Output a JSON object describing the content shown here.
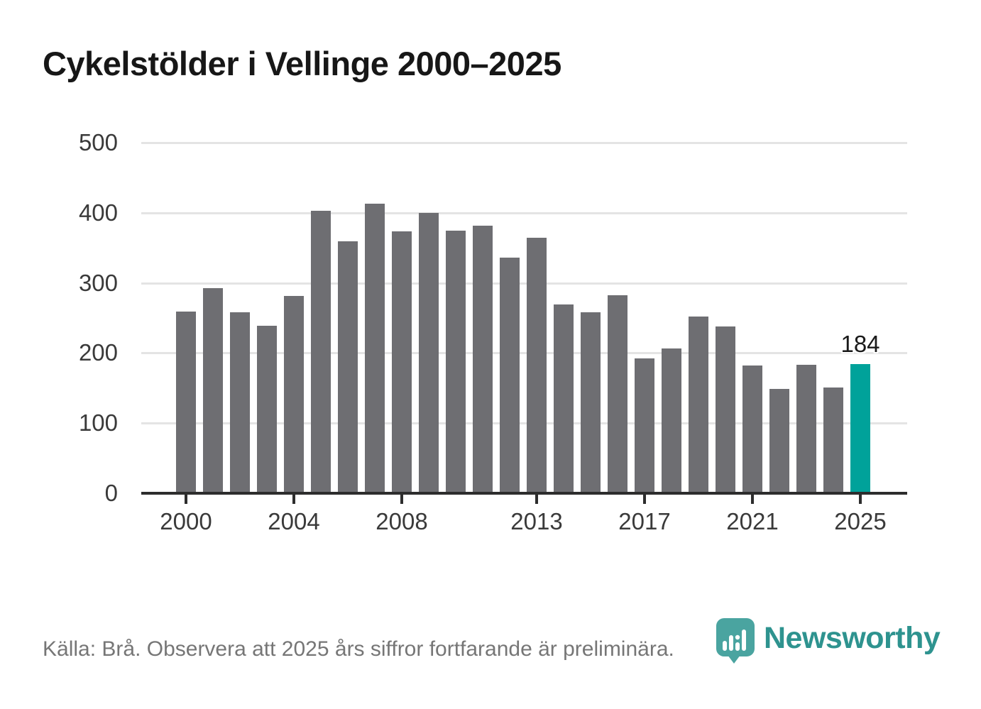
{
  "title": "Cykelstölder i Vellinge 2000–2025",
  "footer": {
    "source_note": "Källa: Brå. Observera att 2025 års siffror fortfarande är preliminära.",
    "brand": "Newsworthy"
  },
  "colors": {
    "bar": "#6e6e72",
    "highlight": "#00a29a",
    "grid": "#e4e4e4",
    "axis": "#2d2d2d",
    "title_text": "#171717",
    "tick_text": "#3a3a3a",
    "note_text": "#767676",
    "logo_pin": "#4aa4a0",
    "logo_wordmark": "#2e938f"
  },
  "chart_data": {
    "type": "bar",
    "title": "Cykelstölder i Vellinge 2000–2025",
    "x": [
      2000,
      2001,
      2002,
      2003,
      2004,
      2005,
      2006,
      2007,
      2008,
      2009,
      2010,
      2011,
      2012,
      2013,
      2014,
      2015,
      2016,
      2017,
      2018,
      2019,
      2020,
      2021,
      2022,
      2023,
      2024,
      2025
    ],
    "values": [
      259,
      293,
      258,
      239,
      281,
      403,
      359,
      413,
      374,
      400,
      375,
      382,
      336,
      364,
      269,
      258,
      282,
      192,
      206,
      252,
      238,
      182,
      149,
      183,
      151,
      184
    ],
    "highlight_index": 25,
    "ylim": [
      0,
      500
    ],
    "yticks": [
      0,
      100,
      200,
      300,
      400,
      500
    ],
    "xtick_years": [
      2000,
      2004,
      2008,
      2013,
      2017,
      2021,
      2025
    ],
    "xtick_labels": [
      "2000",
      "2004",
      "2008",
      "2013",
      "2017",
      "2021",
      "2025"
    ],
    "annotations": [
      {
        "year": 2025,
        "text": "184"
      }
    ],
    "grid": "horizontal",
    "legend": "none",
    "xlabel": "",
    "ylabel": ""
  }
}
